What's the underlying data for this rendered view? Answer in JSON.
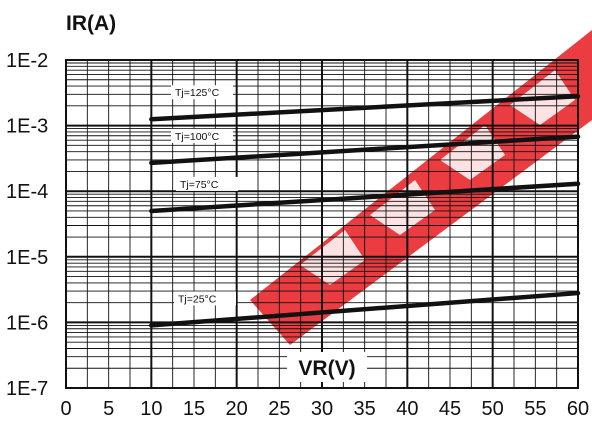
{
  "chart_data": {
    "type": "line",
    "title": "",
    "ylabel": "IR(A)",
    "xlabel": "VR(V)",
    "x_ticks": [
      "0",
      "5",
      "10",
      "15",
      "20",
      "25",
      "30",
      "35",
      "40",
      "45",
      "50",
      "55",
      "60"
    ],
    "y_ticks": [
      "1E-7",
      "1E-6",
      "1E-5",
      "1E-4",
      "1E-3",
      "1E-2"
    ],
    "xlim": [
      0,
      60
    ],
    "ylim": [
      1e-07,
      0.01
    ],
    "y_scale": "log",
    "grid": true,
    "watermark_color": "#e8282d",
    "series": [
      {
        "name": "Tj=125°C",
        "x": [
          10,
          60
        ],
        "y": [
          0.00125,
          0.0028
        ]
      },
      {
        "name": "Tj=100°C",
        "x": [
          10,
          60
        ],
        "y": [
          0.00027,
          0.00068
        ]
      },
      {
        "name": "Tj=75°C",
        "x": [
          10,
          60
        ],
        "y": [
          5e-05,
          0.00013
        ]
      },
      {
        "name": "Tj=25°C",
        "x": [
          10,
          60
        ],
        "y": [
          9e-07,
          2.8e-06
        ]
      }
    ]
  }
}
